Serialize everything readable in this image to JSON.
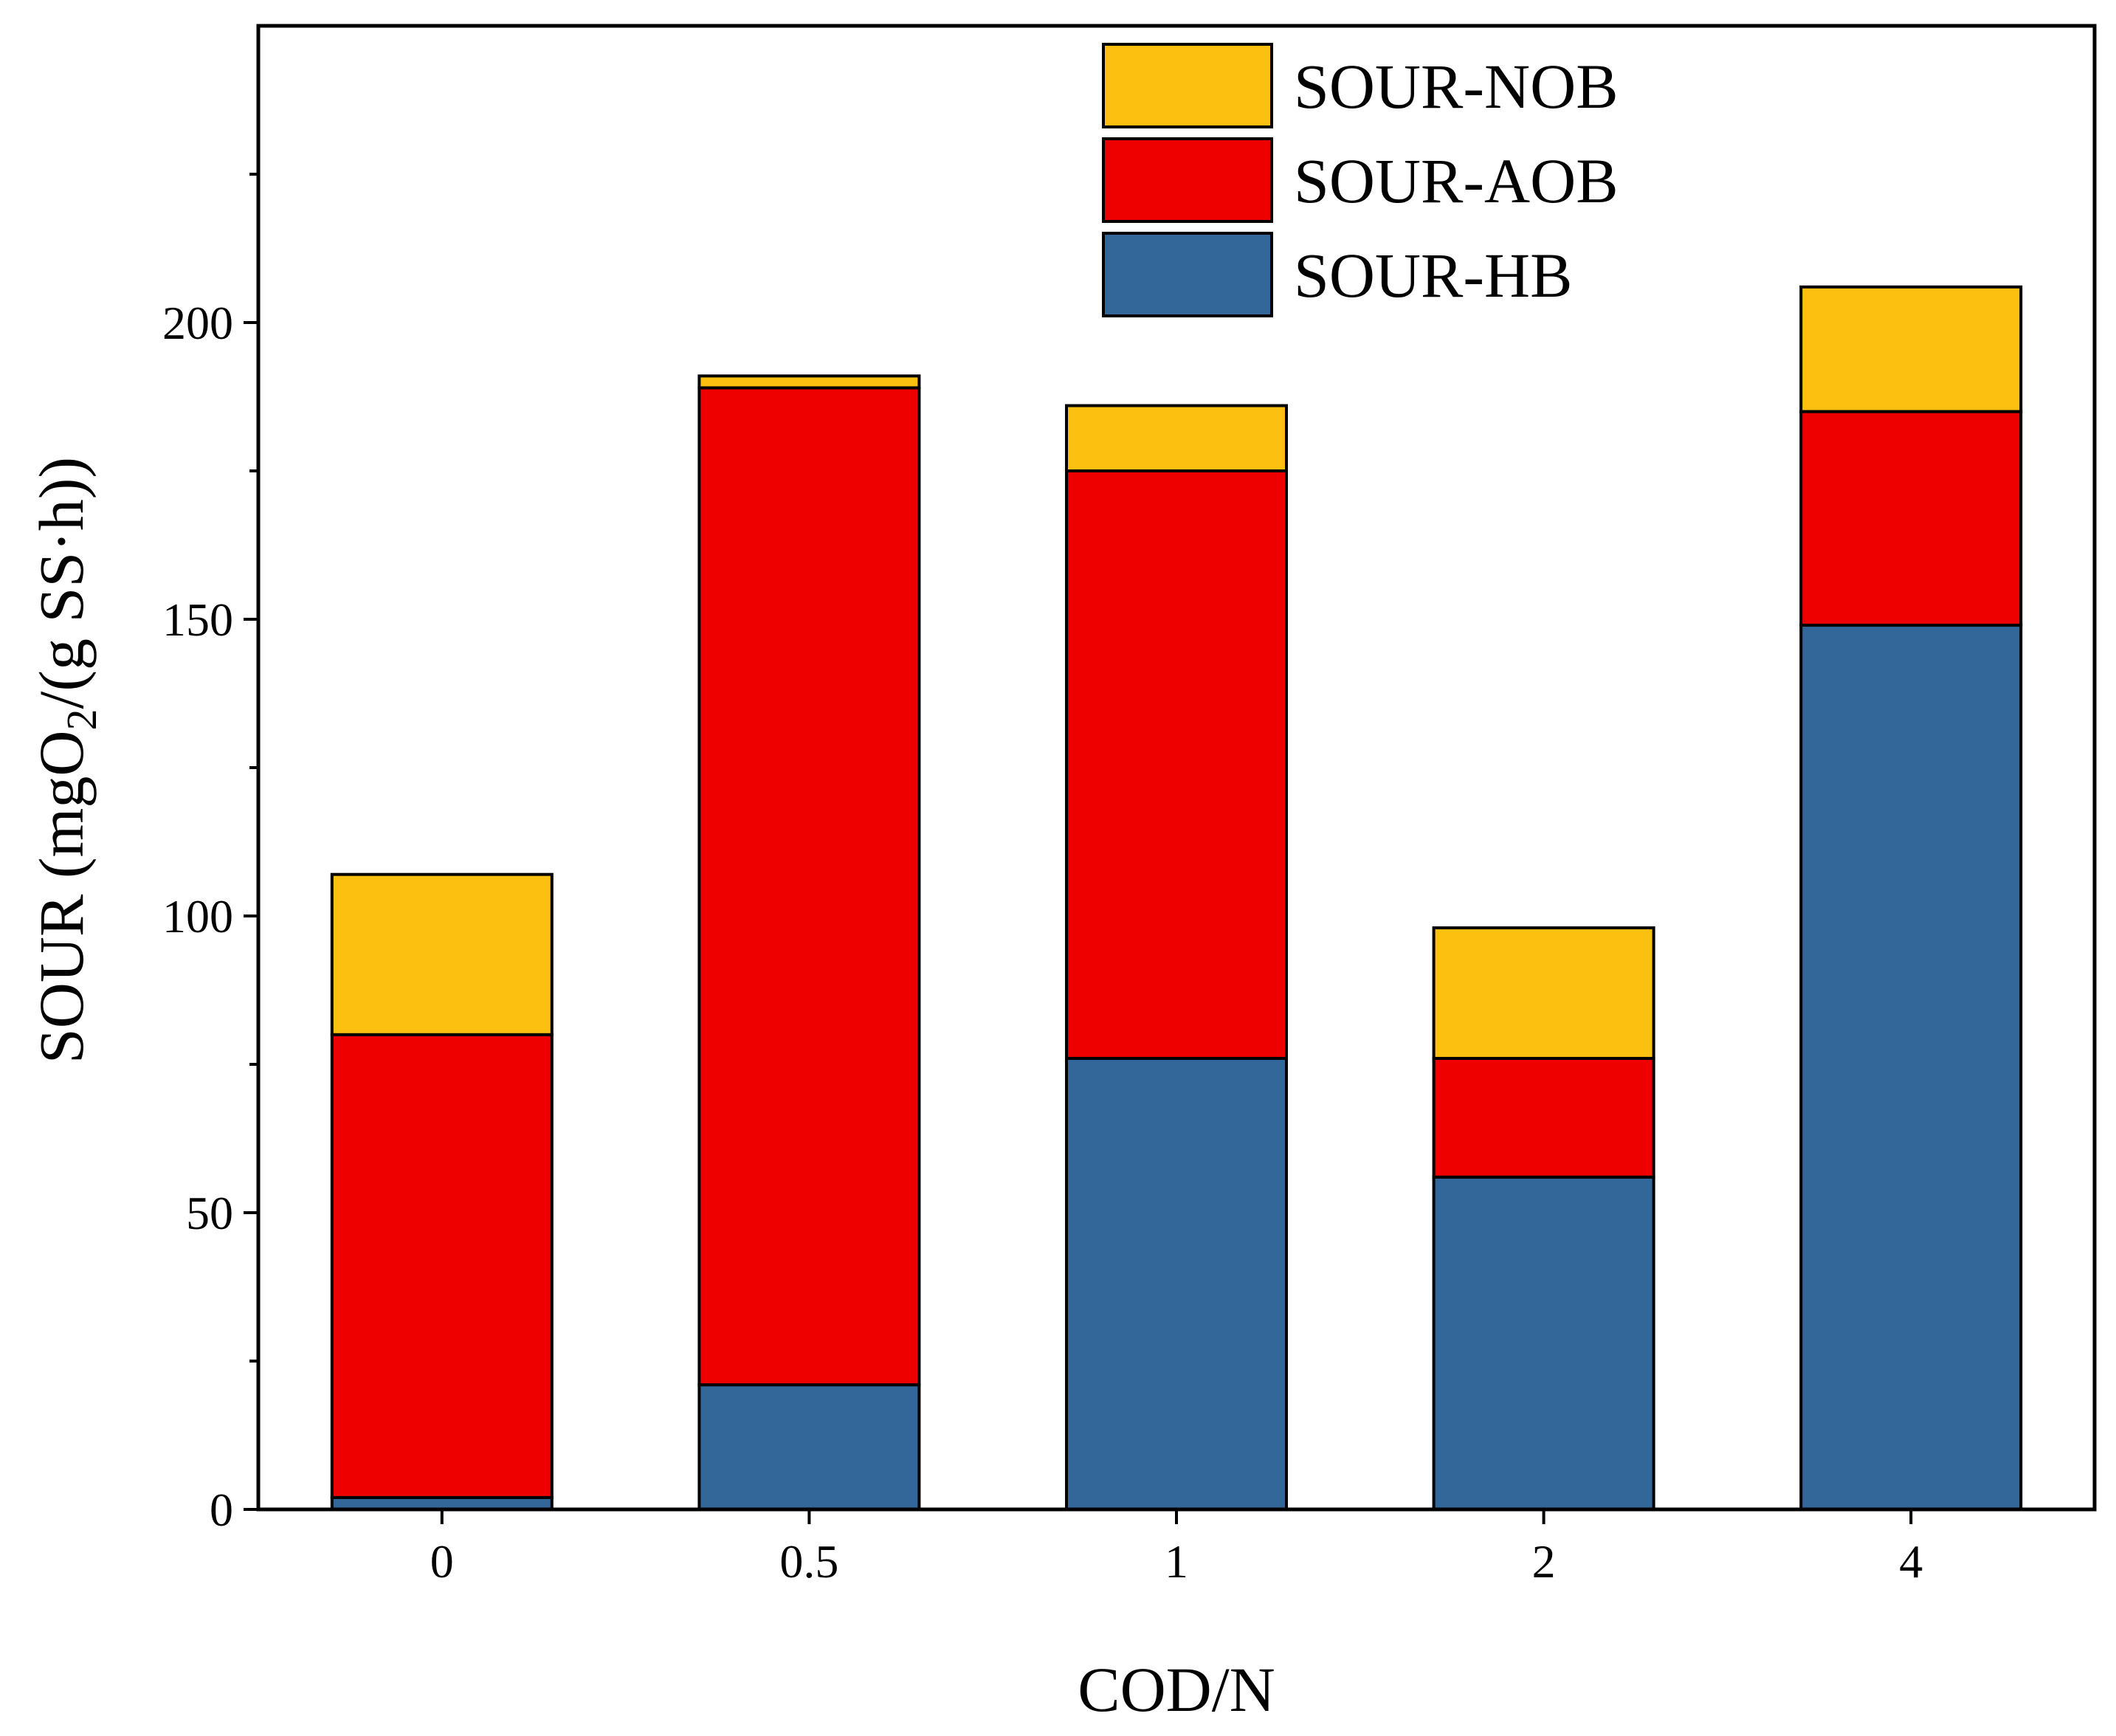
{
  "chart_data": {
    "type": "bar",
    "stacked": true,
    "categories": [
      "0",
      "0.5",
      "1",
      "2",
      "4"
    ],
    "series": [
      {
        "name": "SOUR-HB",
        "color": "#336699",
        "values": [
          2,
          21,
          76,
          56,
          149
        ]
      },
      {
        "name": "SOUR-AOB",
        "color": "#EE0000",
        "values": [
          78,
          168,
          99,
          20,
          36
        ]
      },
      {
        "name": "SOUR-NOB",
        "color": "#FCC010",
        "values": [
          27,
          2,
          11,
          22,
          21
        ]
      }
    ],
    "title": "",
    "xlabel": "COD/N",
    "ylabel": {
      "prefix": "SOUR (mgO",
      "subscript": "2",
      "suffix": "/(g SS·h))"
    },
    "ylim": [
      0,
      250
    ],
    "yticks": [
      0,
      50,
      100,
      150,
      200
    ],
    "yminor_step": 25,
    "grid": false,
    "legend_position": "top-center",
    "legend_order": [
      "SOUR-NOB",
      "SOUR-AOB",
      "SOUR-HB"
    ]
  }
}
